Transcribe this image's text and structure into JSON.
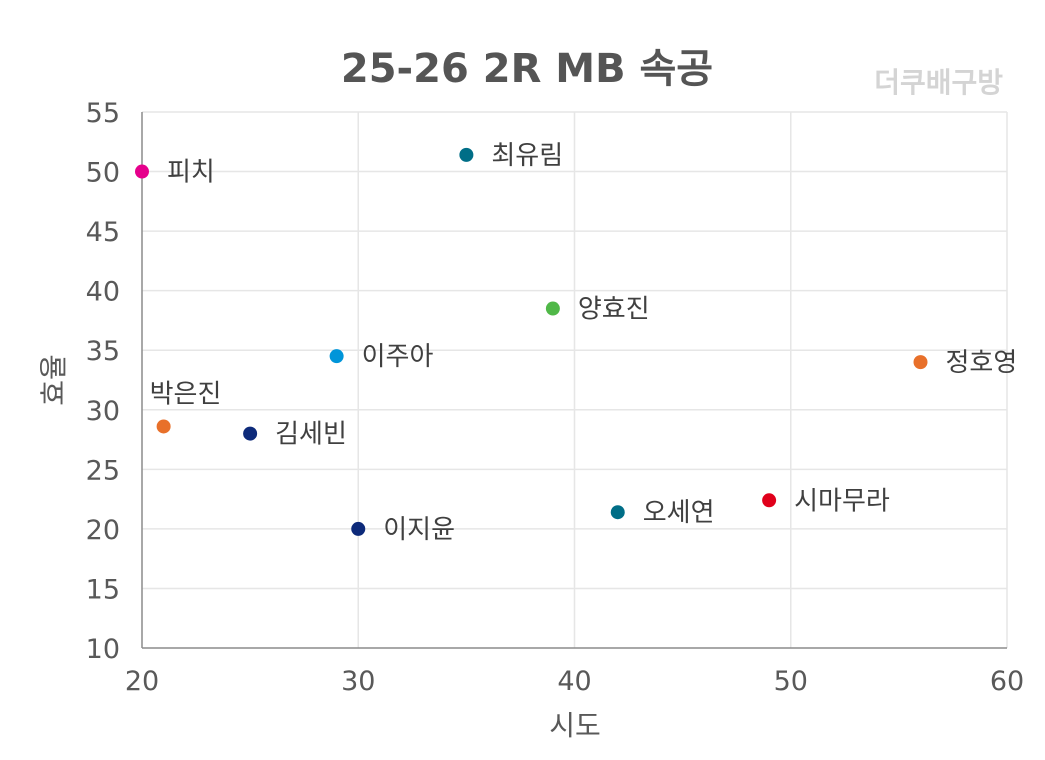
{
  "watermark": "더쿠배구방",
  "chart_data": {
    "type": "scatter",
    "title": "25-26  2R MB 속공",
    "xlabel": "시도",
    "ylabel": "효율",
    "xlim": [
      20,
      60
    ],
    "ylim": [
      10,
      55
    ],
    "xticks": [
      "20",
      "30",
      "40",
      "50",
      "60"
    ],
    "yticks": [
      "10",
      "15",
      "20",
      "25",
      "30",
      "35",
      "40",
      "45",
      "50",
      "55"
    ],
    "grid": true,
    "points": [
      {
        "label": "피치",
        "x": 20,
        "y": 50.0,
        "color": "#e6008c",
        "label_pos": "right"
      },
      {
        "label": "최유림",
        "x": 35,
        "y": 51.4,
        "color": "#006e87",
        "label_pos": "right"
      },
      {
        "label": "양효진",
        "x": 39,
        "y": 38.5,
        "color": "#50b848",
        "label_pos": "right"
      },
      {
        "label": "이주아",
        "x": 29,
        "y": 34.5,
        "color": "#0095d9",
        "label_pos": "right"
      },
      {
        "label": "정호영",
        "x": 56,
        "y": 34.0,
        "color": "#e8702a",
        "label_pos": "right"
      },
      {
        "label": "박은진",
        "x": 21,
        "y": 28.6,
        "color": "#e8702a",
        "label_pos": "above"
      },
      {
        "label": "김세빈",
        "x": 25,
        "y": 28.0,
        "color": "#0d2a7a",
        "label_pos": "right"
      },
      {
        "label": "이지윤",
        "x": 30,
        "y": 20.0,
        "color": "#0d2a7a",
        "label_pos": "right"
      },
      {
        "label": "오세연",
        "x": 42,
        "y": 21.4,
        "color": "#006e87",
        "label_pos": "right"
      },
      {
        "label": "시마무라",
        "x": 49,
        "y": 22.4,
        "color": "#e0001b",
        "label_pos": "right"
      }
    ]
  }
}
